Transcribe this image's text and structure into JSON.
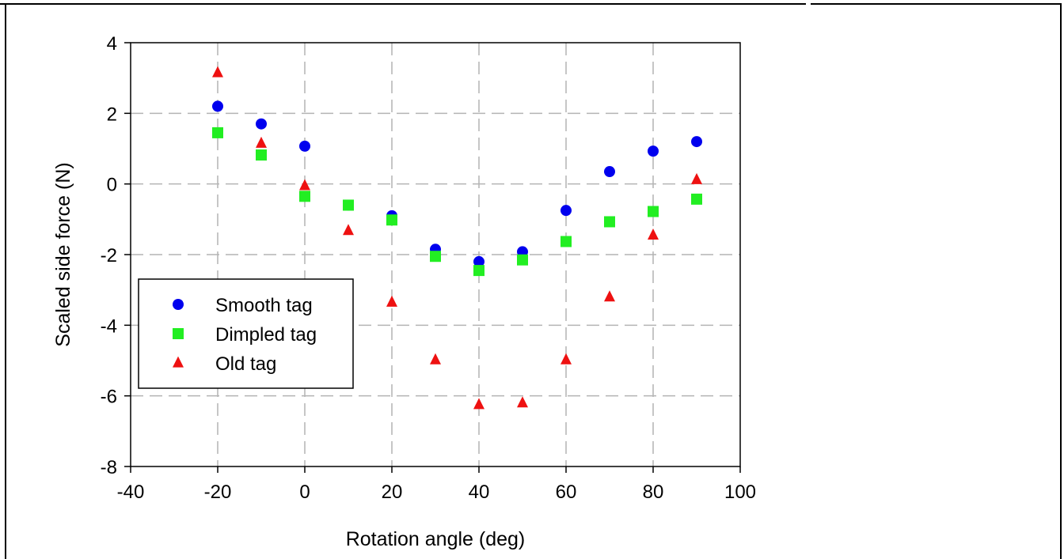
{
  "chart_data": {
    "type": "scatter",
    "xlabel": "Rotation angle (deg)",
    "ylabel": "Scaled side force (N)",
    "xlim": [
      -40,
      100
    ],
    "ylim": [
      -8,
      4
    ],
    "xticks": [
      -40,
      -20,
      0,
      20,
      40,
      60,
      80,
      100
    ],
    "yticks": [
      -8,
      -6,
      -4,
      -2,
      0,
      2,
      4
    ],
    "grid": true,
    "legend_position": "lower-left",
    "series": [
      {
        "name": "Smooth tag",
        "marker": "circle",
        "color": "#0000ee",
        "x": [
          -20,
          -10,
          0,
          10,
          20,
          30,
          40,
          50,
          60,
          70,
          80,
          90
        ],
        "y": [
          2.2,
          1.7,
          1.07,
          -0.6,
          -0.9,
          -1.85,
          -2.2,
          -1.92,
          -0.75,
          0.35,
          0.93,
          1.2
        ]
      },
      {
        "name": "Dimpled tag",
        "marker": "square",
        "color": "#22ee22",
        "x": [
          -20,
          -10,
          0,
          10,
          20,
          30,
          40,
          50,
          60,
          70,
          80,
          90
        ],
        "y": [
          1.45,
          0.82,
          -0.35,
          -0.6,
          -1.02,
          -2.05,
          -2.45,
          -2.15,
          -1.63,
          -1.07,
          -0.78,
          -0.43
        ]
      },
      {
        "name": "Old tag",
        "marker": "triangle",
        "color": "#ee1111",
        "x": [
          -20,
          -10,
          0,
          10,
          20,
          30,
          40,
          50,
          60,
          70,
          80,
          90
        ],
        "y": [
          3.15,
          1.15,
          -0.05,
          -1.32,
          -3.35,
          -4.98,
          -6.25,
          -6.2,
          -4.98,
          -3.2,
          -1.45,
          0.12
        ]
      }
    ]
  }
}
